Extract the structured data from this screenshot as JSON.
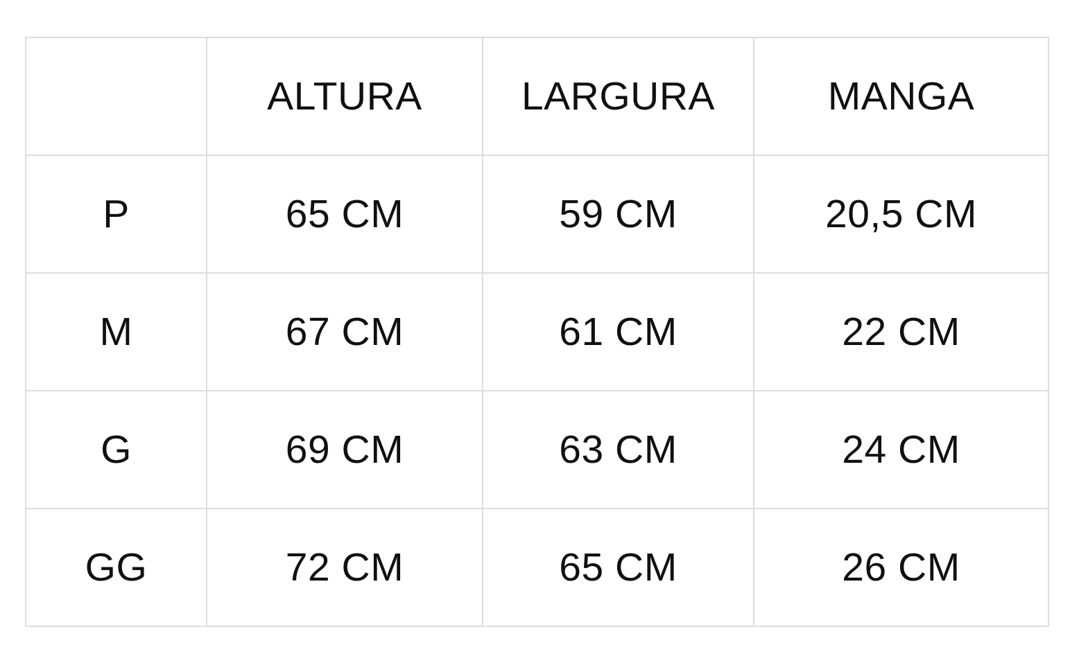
{
  "colors": {
    "background": "#ffffff",
    "border": "#dddddd",
    "text": "#101010"
  },
  "table": {
    "columns": [
      {
        "key": "size",
        "label": ""
      },
      {
        "key": "altura",
        "label": "ALTURA"
      },
      {
        "key": "largura",
        "label": "LARGURA"
      },
      {
        "key": "manga",
        "label": "MANGA"
      }
    ],
    "rows": [
      {
        "size": "P",
        "altura": "65 CM",
        "largura": "59 CM",
        "manga": "20,5 CM"
      },
      {
        "size": "M",
        "altura": "67 CM",
        "largura": "61 CM",
        "manga": "22 CM"
      },
      {
        "size": "G",
        "altura": "69 CM",
        "largura": "63 CM",
        "manga": "24 CM"
      },
      {
        "size": "GG",
        "altura": "72 CM",
        "largura": "65 CM",
        "manga": "26 CM"
      }
    ]
  },
  "chart_data": {
    "type": "table",
    "title": "",
    "columns": [
      "",
      "ALTURA",
      "LARGURA",
      "MANGA"
    ],
    "rows": [
      [
        "P",
        "65 CM",
        "59 CM",
        "20,5 CM"
      ],
      [
        "M",
        "67 CM",
        "61 CM",
        "22 CM"
      ],
      [
        "G",
        "69 CM",
        "63 CM",
        "24 CM"
      ],
      [
        "GG",
        "72 CM",
        "65 CM",
        "26 CM"
      ]
    ],
    "units": "CM",
    "notes_layout": "grid on, white background, light gray 2px cell borders, all cells center-aligned"
  }
}
